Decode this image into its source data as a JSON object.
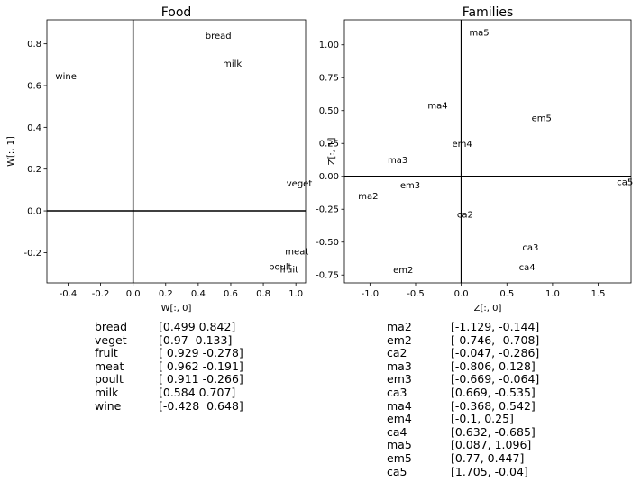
{
  "chart_data": [
    {
      "type": "scatter",
      "title": "Food",
      "xlabel": "W[:, 0]",
      "ylabel": "W[:, 1]",
      "xlim": [
        -0.53,
        1.06
      ],
      "ylim": [
        -0.345,
        0.915
      ],
      "xticks": [
        "-0.4",
        "-0.2",
        "0.0",
        "0.2",
        "0.4",
        "0.6",
        "0.8",
        "1.0"
      ],
      "xtick_values": [
        -0.4,
        -0.2,
        0.0,
        0.2,
        0.4,
        0.6,
        0.8,
        1.0
      ],
      "yticks": [
        "-0.2",
        "0.0",
        "0.2",
        "0.4",
        "0.6",
        "0.8"
      ],
      "ytick_values": [
        -0.2,
        0.0,
        0.2,
        0.4,
        0.6,
        0.8
      ],
      "points": [
        {
          "label": "bread",
          "x": 0.499,
          "y": 0.842
        },
        {
          "label": "veget",
          "x": 0.97,
          "y": 0.133
        },
        {
          "label": "fruit",
          "x": 0.929,
          "y": -0.278
        },
        {
          "label": "meat",
          "x": 0.962,
          "y": -0.191
        },
        {
          "label": "poult",
          "x": 0.911,
          "y": -0.266
        },
        {
          "label": "milk",
          "x": 0.584,
          "y": 0.707
        },
        {
          "label": "wine",
          "x": -0.428,
          "y": 0.648
        }
      ],
      "table": [
        {
          "name": "bread",
          "value": "[0.499 0.842]"
        },
        {
          "name": "veget",
          "value": "[0.97  0.133]"
        },
        {
          "name": "fruit",
          "value": "[ 0.929 -0.278]"
        },
        {
          "name": "meat",
          "value": "[ 0.962 -0.191]"
        },
        {
          "name": "poult",
          "value": "[ 0.911 -0.266]"
        },
        {
          "name": "milk",
          "value": "[0.584 0.707]"
        },
        {
          "name": "wine",
          "value": "[-0.428  0.648]"
        }
      ]
    },
    {
      "type": "scatter",
      "title": "Families",
      "xlabel": "Z[:, 0]",
      "ylabel": "Z[:, 1]",
      "xlim": [
        -1.28,
        1.86
      ],
      "ylim": [
        -0.81,
        1.19
      ],
      "xticks": [
        "-1.0",
        "-0.5",
        "0.0",
        "0.5",
        "1.0",
        "1.5"
      ],
      "xtick_values": [
        -1.0,
        -0.5,
        0.0,
        0.5,
        1.0,
        1.5
      ],
      "yticks": [
        "-0.75",
        "-0.50",
        "-0.25",
        "0.00",
        "0.25",
        "0.50",
        "0.75",
        "1.00"
      ],
      "ytick_values": [
        -0.75,
        -0.5,
        -0.25,
        0.0,
        0.25,
        0.5,
        0.75,
        1.0
      ],
      "points": [
        {
          "label": "ma2",
          "x": -1.129,
          "y": -0.144
        },
        {
          "label": "em2",
          "x": -0.746,
          "y": -0.708
        },
        {
          "label": "ca2",
          "x": -0.047,
          "y": -0.286
        },
        {
          "label": "ma3",
          "x": -0.806,
          "y": 0.128
        },
        {
          "label": "em3",
          "x": -0.669,
          "y": -0.064
        },
        {
          "label": "ca3",
          "x": 0.669,
          "y": -0.535
        },
        {
          "label": "ma4",
          "x": -0.368,
          "y": 0.542
        },
        {
          "label": "em4",
          "x": -0.1,
          "y": 0.25
        },
        {
          "label": "ca4",
          "x": 0.632,
          "y": -0.685
        },
        {
          "label": "ma5",
          "x": 0.087,
          "y": 1.096
        },
        {
          "label": "em5",
          "x": 0.77,
          "y": 0.447
        },
        {
          "label": "ca5",
          "x": 1.705,
          "y": -0.04
        }
      ],
      "table": [
        {
          "name": "ma2",
          "value": "[-1.129, -0.144]"
        },
        {
          "name": "em2",
          "value": "[-0.746, -0.708]"
        },
        {
          "name": "ca2",
          "value": "[-0.047, -0.286]"
        },
        {
          "name": "ma3",
          "value": "[-0.806, 0.128]"
        },
        {
          "name": "em3",
          "value": "[-0.669, -0.064]"
        },
        {
          "name": "ca3",
          "value": "[0.669, -0.535]"
        },
        {
          "name": "ma4",
          "value": "[-0.368, 0.542]"
        },
        {
          "name": "em4",
          "value": "[-0.1, 0.25]"
        },
        {
          "name": "ca4",
          "value": "[0.632, -0.685]"
        },
        {
          "name": "ma5",
          "value": "[0.087, 1.096]"
        },
        {
          "name": "em5",
          "value": "[0.77, 0.447]"
        },
        {
          "name": "ca5",
          "value": "[1.705, -0.04]"
        }
      ]
    }
  ]
}
